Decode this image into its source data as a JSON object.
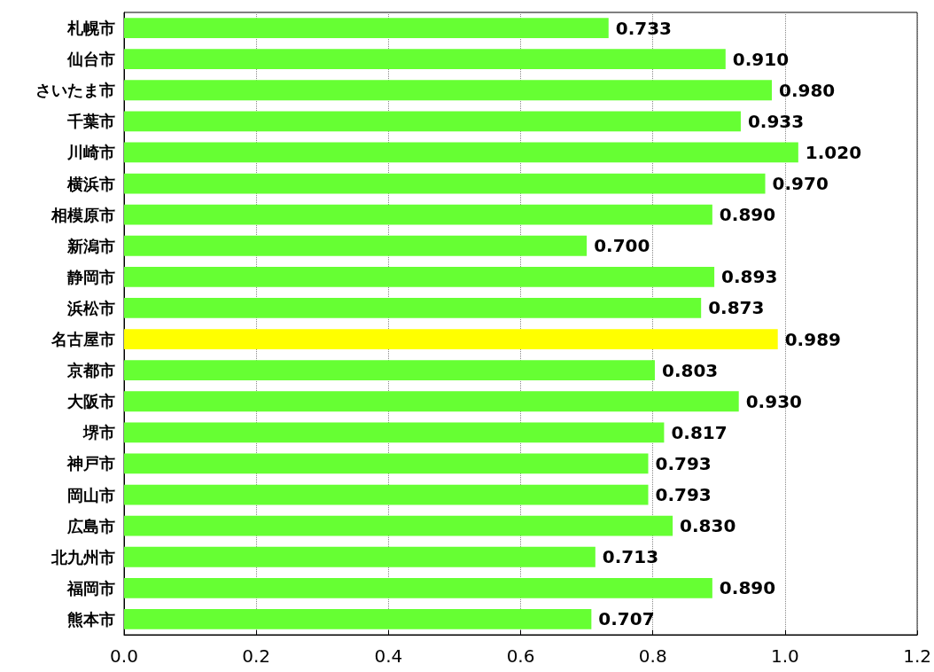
{
  "chart_data": {
    "type": "bar",
    "orientation": "horizontal",
    "categories": [
      "札幌市",
      "仙台市",
      "さいたま市",
      "千葉市",
      "川崎市",
      "横浜市",
      "相模原市",
      "新潟市",
      "静岡市",
      "浜松市",
      "名古屋市",
      "京都市",
      "大阪市",
      "堺市",
      "神戸市",
      "岡山市",
      "広島市",
      "北九州市",
      "福岡市",
      "熊本市"
    ],
    "values": [
      0.733,
      0.91,
      0.98,
      0.933,
      1.02,
      0.97,
      0.89,
      0.7,
      0.893,
      0.873,
      0.989,
      0.803,
      0.93,
      0.817,
      0.793,
      0.793,
      0.83,
      0.713,
      0.89,
      0.707
    ],
    "value_labels": [
      "0.733",
      "0.910",
      "0.980",
      "0.933",
      "1.020",
      "0.970",
      "0.890",
      "0.700",
      "0.893",
      "0.873",
      "0.989",
      "0.803",
      "0.930",
      "0.817",
      "0.793",
      "0.793",
      "0.830",
      "0.713",
      "0.890",
      "0.707"
    ],
    "colors": [
      "#66ff33",
      "#66ff33",
      "#66ff33",
      "#66ff33",
      "#66ff33",
      "#66ff33",
      "#66ff33",
      "#66ff33",
      "#66ff33",
      "#66ff33",
      "#ffff00",
      "#66ff33",
      "#66ff33",
      "#66ff33",
      "#66ff33",
      "#66ff33",
      "#66ff33",
      "#66ff33",
      "#66ff33",
      "#66ff33"
    ],
    "xlim": [
      0,
      1.2
    ],
    "xticks": [
      {
        "value": 0,
        "label": "0.0"
      },
      {
        "value": 0.2,
        "label": "0.2"
      },
      {
        "value": 0.4,
        "label": "0.4"
      },
      {
        "value": 0.6,
        "label": "0.6"
      },
      {
        "value": 0.8,
        "label": "0.8"
      },
      {
        "value": 1,
        "label": "1.0"
      },
      {
        "value": 1.2,
        "label": "1.2"
      }
    ],
    "grid": "x"
  }
}
